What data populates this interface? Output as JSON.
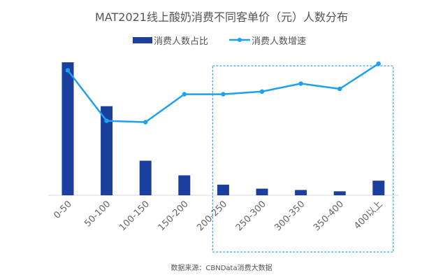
{
  "chart_data": {
    "type": "bar+line",
    "title": "MAT2021线上酸奶消费不同客单价（元）人数分布",
    "categories": [
      "0-50",
      "50-100",
      "100-150",
      "150-200",
      "200-250",
      "250-300",
      "300-350",
      "350-400",
      "400以上"
    ],
    "series": [
      {
        "name": "消费人数占比",
        "type": "bar",
        "color": "#1a3f9c",
        "values": [
          100,
          67,
          26,
          15,
          8,
          5,
          4,
          3,
          11
        ]
      },
      {
        "name": "消费人数增速",
        "type": "line",
        "color": "#1ea0f0",
        "values": [
          94,
          56,
          55,
          76,
          76,
          78,
          84,
          80,
          99
        ]
      }
    ],
    "value_note_scale": "relative, no axis printed",
    "ylim": [
      0,
      100
    ],
    "grid": false,
    "legend_position": "top",
    "highlight_range": [
      "200-250",
      "400以上"
    ],
    "highlight_color": "#3aa8e8",
    "source": "数据来源：CBNData消费大数据"
  }
}
